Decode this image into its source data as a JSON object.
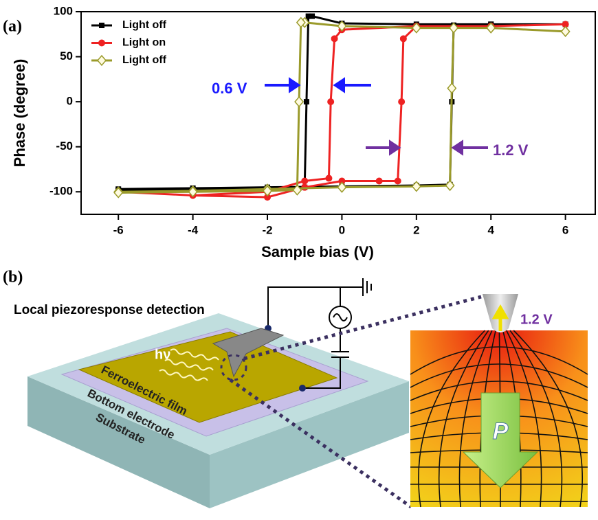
{
  "chart_data": {
    "type": "line",
    "xlabel": "Sample bias (V)",
    "ylabel": "Phase (degree)",
    "xlim": [
      -7,
      6.8
    ],
    "xticks": [
      -6,
      -4,
      -2,
      0,
      2,
      4,
      6
    ],
    "ylim": [
      -125,
      100
    ],
    "yticks": [
      -100,
      -50,
      0,
      50,
      100
    ],
    "legend": "upper left",
    "series": [
      {
        "name": "Light off",
        "color": "#000000",
        "marker": "square",
        "x": [
          -6,
          -4,
          -2,
          0,
          2,
          2.9,
          2.95,
          3,
          4,
          6,
          4,
          2,
          0,
          -0.8,
          -0.9,
          -0.95,
          -1,
          -2,
          -4,
          -6
        ],
        "values": [
          -97,
          -96,
          -95,
          -94,
          -93,
          -92,
          0,
          85,
          86,
          86,
          86,
          86,
          87,
          95,
          95,
          0,
          -95,
          -96,
          -97,
          -98
        ]
      },
      {
        "name": "Light on",
        "color": "#ee2222",
        "marker": "circle",
        "x": [
          -6,
          -4,
          -2,
          -1,
          0,
          1,
          1.5,
          1.6,
          1.65,
          2,
          4,
          6,
          4,
          2,
          0,
          -0.2,
          -0.3,
          -0.35,
          -1,
          -2,
          -4,
          -6
        ],
        "values": [
          -100,
          -104,
          -106,
          -95,
          -88,
          -88,
          -88,
          0,
          70,
          84,
          84,
          86,
          84,
          84,
          80,
          70,
          0,
          -85,
          -88,
          -100,
          -104,
          -100
        ]
      },
      {
        "name": "Light off",
        "color": "#9a9a2a",
        "marker": "diamond",
        "x": [
          -6,
          -4,
          -2,
          0,
          2,
          2.9,
          2.95,
          3,
          4,
          6,
          4,
          2,
          0,
          -1,
          -1.1,
          -1.15,
          -1.2,
          -2,
          -4,
          -6
        ],
        "values": [
          -100,
          -99,
          -97,
          -95,
          -94,
          -93,
          15,
          82,
          82,
          78,
          82,
          82,
          84,
          88,
          88,
          0,
          -98,
          -99,
          -100,
          -101
        ]
      }
    ],
    "annotations": [
      "0.6 V",
      "1.2 V"
    ]
  },
  "panel_labels": [
    "(a)",
    "(b)"
  ],
  "diagram": {
    "detection_label": "Local piezoresponse detection",
    "light_label": "hν",
    "film_label": "Ferroelectric film",
    "electrode_label": "Bottom electrode",
    "substrate_label": "Substrate",
    "tip_bias_label": "1.2 V",
    "polarization_label": "P"
  }
}
